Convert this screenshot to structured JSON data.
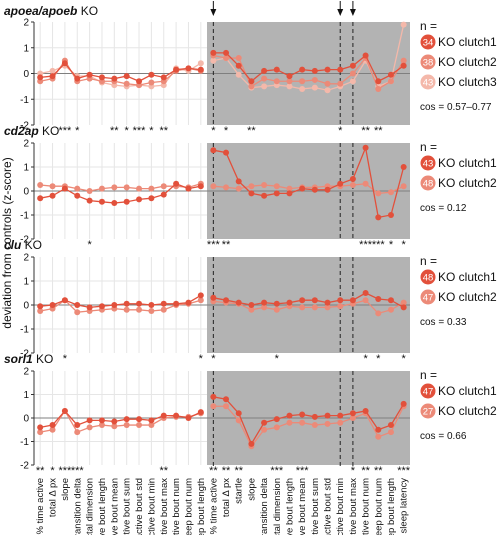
{
  "ylabel": "deviation from controls (z-score)",
  "y_ticks": [
    "2",
    "1",
    "0",
    "-1",
    "-2"
  ],
  "arrow_categories": [
    0,
    10,
    11
  ],
  "categories_day": [
    "% time active",
    "total Δ px",
    "slope",
    "transition delta",
    "fractal dimension",
    "active bout length",
    "active bout mean",
    "active bout sum",
    "active bout std",
    "active bout min",
    "active bout max",
    "active bout num",
    "sleep bout num",
    "sleep bout length"
  ],
  "categories_night": [
    "% time active",
    "total Δ px",
    "startle",
    "slope",
    "transition delta",
    "fractal dimension",
    "active bout length",
    "active bout mean",
    "active bout sum",
    "active bout std",
    "active bout min",
    "active bout max",
    "active bout num",
    "sleep bout num",
    "sleep bout length",
    "sleep latency"
  ],
  "colors": {
    "clutch1": "#e2503b",
    "clutch2": "#ec8a78",
    "clutch3": "#f4b8aa",
    "night_bg": "#b3b3b3",
    "zero_line": "#7f7f7f"
  },
  "chart_data": [
    {
      "type": "line",
      "title": "apoea/apoeb KO",
      "ylim": [
        -2,
        2
      ],
      "legend": {
        "n_label": "n =",
        "entries": [
          {
            "count": "34",
            "name": "KO clutch1"
          },
          {
            "count": "38",
            "name": "KO clutch2"
          },
          {
            "count": "43",
            "name": "KO clutch3"
          }
        ]
      },
      "cos": "cos = 0.57–0.77",
      "stars_day": [
        "",
        "",
        "***",
        "*",
        "",
        "",
        "**",
        "*",
        "***",
        "*",
        "**",
        "",
        "",
        ""
      ],
      "stars_night": [
        "*",
        "*",
        "",
        "**",
        "",
        "",
        "",
        "",
        "",
        "",
        "*",
        "",
        "**",
        "**",
        "",
        ""
      ],
      "series": [
        {
          "name": "KO clutch1",
          "day": [
            -0.15,
            -0.1,
            0.4,
            -0.2,
            -0.05,
            -0.15,
            -0.2,
            -0.1,
            -0.3,
            -0.05,
            -0.15,
            0.15,
            0.2,
            0.15
          ],
          "night": [
            0.8,
            0.8,
            0.3,
            -0.3,
            0.1,
            0.15,
            -0.1,
            0.15,
            0.1,
            0.15,
            0.15,
            0.3,
            0.7,
            -0.3,
            -0.05,
            0.3
          ]
        },
        {
          "name": "KO clutch2",
          "day": [
            -0.3,
            -0.2,
            0.5,
            -0.3,
            -0.2,
            -0.3,
            -0.3,
            -0.4,
            -0.45,
            -0.35,
            -0.3,
            0.1,
            0.2,
            0.1
          ],
          "night": [
            0.7,
            0.6,
            0.6,
            -0.5,
            -0.2,
            -0.3,
            -0.3,
            -0.3,
            -0.25,
            -0.4,
            -0.4,
            0.0,
            0.6,
            -0.6,
            -0.3,
            0.5
          ]
        },
        {
          "name": "KO clutch3",
          "day": [
            0.0,
            0.1,
            0.3,
            -0.1,
            -0.1,
            -0.35,
            -0.45,
            -0.5,
            -0.45,
            -0.5,
            -0.45,
            0.2,
            0.1,
            0.4
          ],
          "night": [
            0.5,
            0.6,
            -0.05,
            -0.55,
            -0.5,
            -0.45,
            -0.5,
            -0.6,
            -0.55,
            -0.65,
            -0.5,
            -0.3,
            0.5,
            -0.5,
            -0.3,
            1.9
          ]
        }
      ]
    },
    {
      "type": "line",
      "title": "cd2ap KO",
      "ylim": [
        -2,
        2
      ],
      "legend": {
        "n_label": "n =",
        "entries": [
          {
            "count": "43",
            "name": "KO clutch1"
          },
          {
            "count": "48",
            "name": "KO clutch2"
          }
        ]
      },
      "cos": "cos = 0.12",
      "stars_day": [
        "",
        "",
        "",
        "",
        "*",
        "",
        "",
        "",
        "",
        "",
        "",
        "",
        "",
        ""
      ],
      "stars_night": [
        "***",
        "**",
        "",
        "",
        "",
        "",
        "",
        "",
        "",
        "",
        "",
        "",
        "***",
        "***",
        "*",
        "*"
      ],
      "series": [
        {
          "name": "KO clutch1",
          "day": [
            -0.3,
            -0.2,
            0.1,
            -0.2,
            -0.4,
            -0.45,
            -0.5,
            -0.45,
            -0.35,
            -0.3,
            -0.15,
            0.3,
            0.1,
            0.2
          ],
          "night": [
            1.7,
            1.6,
            0.4,
            -0.1,
            -0.2,
            -0.1,
            -0.1,
            0.1,
            0.05,
            0.05,
            0.3,
            0.5,
            1.8,
            -1.1,
            -1.0,
            1.0
          ]
        },
        {
          "name": "KO clutch2",
          "day": [
            0.25,
            0.2,
            0.2,
            0.1,
            0.0,
            0.1,
            0.15,
            0.15,
            0.1,
            0.1,
            0.2,
            0.2,
            0.15,
            0.3
          ],
          "night": [
            0.2,
            0.15,
            0.1,
            0.2,
            0.25,
            0.2,
            0.1,
            0.15,
            0.15,
            0.2,
            0.2,
            0.25,
            0.3,
            -0.1,
            -0.05,
            0.2
          ]
        }
      ]
    },
    {
      "type": "line",
      "title": "clu KO",
      "ylim": [
        -2,
        2
      ],
      "legend": {
        "n_label": "n =",
        "entries": [
          {
            "count": "48",
            "name": "KO clutch1"
          },
          {
            "count": "47",
            "name": "KO clutch2"
          }
        ]
      },
      "cos": "cos = 0.33",
      "stars_day": [
        "",
        "",
        "*",
        "",
        "",
        "",
        "",
        "",
        "",
        "",
        "",
        "",
        "",
        "*"
      ],
      "stars_night": [
        "*",
        "",
        "",
        "",
        "",
        "*",
        "",
        "",
        "",
        "",
        "",
        "",
        "*",
        "*",
        "",
        "*"
      ],
      "series": [
        {
          "name": "KO clutch1",
          "day": [
            -0.05,
            0.0,
            0.2,
            0.0,
            -0.1,
            -0.05,
            0.0,
            0.05,
            0.05,
            0.0,
            0.05,
            0.05,
            0.1,
            0.4
          ],
          "night": [
            0.3,
            0.2,
            0.1,
            0.0,
            0.1,
            0.05,
            0.1,
            0.2,
            0.2,
            0.1,
            0.2,
            0.2,
            0.5,
            0.25,
            0.2,
            -0.1
          ]
        },
        {
          "name": "KO clutch2",
          "day": [
            -0.25,
            -0.15,
            0.2,
            -0.3,
            -0.25,
            -0.2,
            -0.15,
            -0.2,
            -0.2,
            -0.25,
            -0.2,
            0.0,
            0.05,
            0.2
          ],
          "night": [
            0.15,
            0.1,
            0.05,
            -0.2,
            -0.1,
            -0.2,
            -0.05,
            -0.1,
            -0.1,
            -0.1,
            -0.05,
            0.05,
            0.2,
            -0.35,
            -0.2,
            0.1
          ]
        }
      ]
    },
    {
      "type": "line",
      "title": "sorl1 KO",
      "ylim": [
        -2,
        2
      ],
      "legend": {
        "n_label": "n =",
        "entries": [
          {
            "count": "47",
            "name": "KO clutch1"
          },
          {
            "count": "27",
            "name": "KO clutch2"
          }
        ]
      },
      "cos": "cos = 0.66",
      "stars_day": [
        "**",
        "*",
        "***",
        "***",
        "",
        "",
        "",
        "",
        "",
        "",
        "**",
        "",
        "",
        ""
      ],
      "stars_night": [
        "**",
        "**",
        "**",
        "",
        "",
        "***",
        "",
        "***",
        "",
        "",
        "",
        "*",
        "**",
        "**",
        "",
        "***"
      ],
      "series": [
        {
          "name": "KO clutch1",
          "day": [
            -0.4,
            -0.3,
            0.3,
            -0.3,
            -0.1,
            -0.1,
            -0.15,
            -0.05,
            -0.05,
            -0.1,
            0.1,
            0.1,
            0.0,
            0.25
          ],
          "night": [
            0.9,
            0.8,
            0.2,
            -1.1,
            -0.2,
            -0.05,
            0.1,
            0.15,
            0.05,
            0.1,
            0.1,
            0.2,
            0.3,
            -0.5,
            -0.3,
            0.6
          ]
        },
        {
          "name": "KO clutch2",
          "day": [
            -0.6,
            -0.5,
            0.3,
            -0.6,
            -0.4,
            -0.3,
            -0.35,
            -0.3,
            -0.3,
            -0.3,
            0.0,
            0.05,
            0.05,
            0.2
          ],
          "night": [
            0.5,
            0.5,
            -0.1,
            -1.2,
            -0.5,
            -0.4,
            -0.2,
            -0.2,
            -0.3,
            -0.25,
            -0.2,
            0.0,
            0.2,
            -0.8,
            -0.6,
            0.5
          ]
        }
      ]
    }
  ]
}
